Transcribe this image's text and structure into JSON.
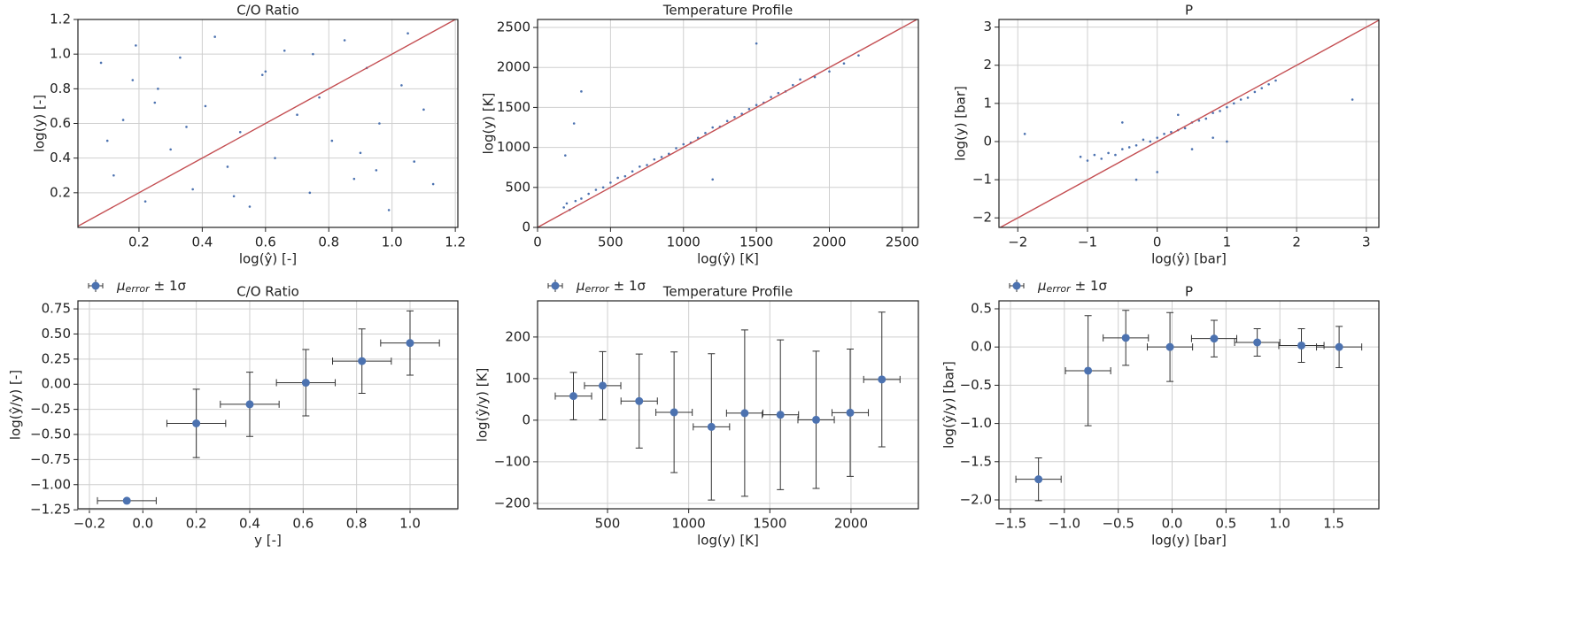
{
  "chart_data": [
    {
      "type": "scatter",
      "title": "C/O Ratio",
      "x_label": "log(ŷ) [-]",
      "y_label": "log(y) [-]",
      "color": "#4c72b0",
      "identity_line_color": "#c44e52",
      "x": [
        0.08,
        0.12,
        0.15,
        0.19,
        0.22,
        0.26,
        0.3,
        0.33,
        0.37,
        0.41,
        0.44,
        0.48,
        0.52,
        0.55,
        0.59,
        0.63,
        0.66,
        0.7,
        0.74,
        0.77,
        0.81,
        0.85,
        0.88,
        0.92,
        0.96,
        0.99,
        1.03,
        1.07,
        1.1,
        1.13,
        0.1,
        0.35,
        0.6,
        0.9,
        1.05,
        0.25,
        0.5,
        0.75,
        0.95,
        0.18
      ],
      "values": [
        0.95,
        0.3,
        0.62,
        1.05,
        0.15,
        0.8,
        0.45,
        0.98,
        0.22,
        0.7,
        1.1,
        0.35,
        0.55,
        0.12,
        0.88,
        0.4,
        1.02,
        0.65,
        0.2,
        0.75,
        0.5,
        1.08,
        0.28,
        0.92,
        0.6,
        0.1,
        0.82,
        0.38,
        0.68,
        0.25,
        0.5,
        0.58,
        0.9,
        0.43,
        1.12,
        0.72,
        0.18,
        1.0,
        0.33,
        0.85
      ],
      "xlim": [
        0.007,
        1.208
      ],
      "ylim": [
        0.0,
        1.2
      ],
      "xticks": [
        0.2,
        0.4,
        0.6,
        0.8,
        {
          "value": 1,
          "label": "1.0"
        },
        1.2
      ],
      "yticks": [
        0.2,
        0.4,
        0.6,
        0.8,
        {
          "value": 1,
          "label": "1.0"
        },
        1.2
      ],
      "grid": true
    },
    {
      "type": "scatter",
      "title": "Temperature Profile",
      "x_label": "log(ŷ) [K]",
      "y_label": "log(y) [K]",
      "color": "#4c72b0",
      "identity_line_color": "#c44e52",
      "x": [
        180,
        200,
        220,
        260,
        300,
        350,
        400,
        450,
        500,
        550,
        600,
        650,
        700,
        750,
        800,
        850,
        900,
        950,
        1000,
        1050,
        1100,
        1150,
        1200,
        1250,
        1300,
        1350,
        1400,
        1450,
        1500,
        1550,
        1600,
        1650,
        1700,
        1750,
        1800,
        1900,
        2000,
        2100,
        2200,
        190,
        300,
        250,
        1200,
        1500
      ],
      "values": [
        250,
        300,
        220,
        330,
        360,
        420,
        470,
        500,
        560,
        620,
        640,
        700,
        760,
        780,
        850,
        880,
        920,
        990,
        1040,
        1060,
        1120,
        1180,
        1250,
        1260,
        1330,
        1380,
        1420,
        1480,
        1530,
        1560,
        1630,
        1680,
        1700,
        1780,
        1850,
        1880,
        1950,
        2050,
        2150,
        900,
        1700,
        1300,
        600,
        2300
      ],
      "xlim": [
        0,
        2610
      ],
      "ylim": [
        0,
        2600
      ],
      "xticks": [
        0,
        500,
        1000,
        1500,
        2000,
        2500
      ],
      "yticks": [
        0,
        500,
        1000,
        1500,
        2000,
        2500
      ],
      "grid": true
    },
    {
      "type": "scatter",
      "title": "P",
      "x_label": "log(ŷ) [bar]",
      "y_label": "log(y) [bar]",
      "color": "#4c72b0",
      "identity_line_color": "#c44e52",
      "x": [
        -1.1,
        -1.0,
        -0.9,
        -0.8,
        -0.7,
        -0.6,
        -0.5,
        -0.4,
        -0.3,
        -0.2,
        -0.1,
        0,
        0.1,
        0.2,
        0.3,
        0.4,
        0.5,
        0.6,
        0.7,
        0.8,
        0.9,
        1.0,
        1.1,
        1.2,
        1.3,
        1.4,
        1.5,
        1.6,
        1.7,
        -0.5,
        0,
        0.5,
        1.0,
        0.8,
        -1.9,
        2.8,
        -0.3,
        0.3
      ],
      "values": [
        -0.4,
        -0.5,
        -0.35,
        -0.45,
        -0.3,
        -0.35,
        -0.2,
        -0.15,
        -0.1,
        0.05,
        0.0,
        0.1,
        0.2,
        0.25,
        0.3,
        0.35,
        0.5,
        0.55,
        0.6,
        0.75,
        0.8,
        0.9,
        1.0,
        1.1,
        1.15,
        1.3,
        1.4,
        1.5,
        1.6,
        0.5,
        -0.8,
        -0.2,
        0.0,
        0.1,
        0.2,
        1.1,
        -1.0,
        0.7
      ],
      "xlim": [
        -2.27,
        3.18
      ],
      "ylim": [
        -2.25,
        3.2
      ],
      "xticks": [
        {
          "value": -2,
          "label": "−2"
        },
        {
          "value": -1,
          "label": "−1"
        },
        0,
        1,
        2,
        3
      ],
      "yticks": [
        {
          "value": -2,
          "label": "−2"
        },
        {
          "value": -1,
          "label": "−1"
        },
        0,
        1,
        2,
        3
      ],
      "grid": true
    },
    {
      "type": "errorbar",
      "title": "C/O Ratio",
      "x_label": "y [-]",
      "y_label": "log(ŷ/y) [-]",
      "color": "#4c72b0",
      "legend": {
        "symbol": "μ",
        "subscript": "error",
        "suffix": "± 1σ"
      },
      "x": [
        -0.06,
        0.2,
        0.4,
        0.61,
        0.82,
        1.0
      ],
      "values": [
        -1.16,
        -0.39,
        -0.2,
        0.015,
        0.23,
        0.41
      ],
      "xerr": [
        0.11,
        0.11,
        0.11,
        0.11,
        0.11,
        0.11
      ],
      "yerr": [
        0.01,
        0.34,
        0.32,
        0.33,
        0.32,
        0.32
      ],
      "xlim": [
        -0.243,
        1.179
      ],
      "ylim": [
        -1.24,
        0.83
      ],
      "xticks": [
        {
          "value": -0.2,
          "label": "−0.2"
        },
        {
          "value": 0,
          "label": "0.0"
        },
        0.2,
        0.4,
        0.6,
        0.8,
        {
          "value": 1,
          "label": "1.0"
        }
      ],
      "yticks": [
        {
          "value": -1.25,
          "label": "−1.25"
        },
        {
          "value": -1,
          "label": "−1.00"
        },
        {
          "value": -0.75,
          "label": "−0.75"
        },
        {
          "value": -0.5,
          "label": "−0.50"
        },
        {
          "value": -0.25,
          "label": "−0.25"
        },
        {
          "value": 0,
          "label": "0.00"
        },
        0.25,
        {
          "value": 0.5,
          "label": "0.50"
        },
        0.75
      ],
      "grid": true
    },
    {
      "type": "errorbar",
      "title": "Temperature Profile",
      "x_label": "log(y) [K]",
      "y_label": "log(ŷ/y) [K]",
      "color": "#4c72b0",
      "legend": {
        "symbol": "μ",
        "subscript": "error",
        "suffix": "± 1σ"
      },
      "x": [
        290,
        470,
        695,
        910,
        1140,
        1345,
        1565,
        1785,
        1995,
        2190
      ],
      "values": [
        58,
        83,
        46,
        19,
        -16,
        17,
        13,
        1,
        18,
        98
      ],
      "xerr": [
        112,
        112,
        112,
        112,
        112,
        112,
        112,
        112,
        112,
        112
      ],
      "yerr": [
        57,
        82,
        113,
        145,
        176,
        200,
        180,
        165,
        153,
        162
      ],
      "xlim": [
        69,
        2415
      ],
      "ylim": [
        -213,
        287
      ],
      "xticks": [
        500,
        1000,
        1500,
        2000
      ],
      "yticks": [
        {
          "value": -200,
          "label": "−200"
        },
        {
          "value": -100,
          "label": "−100"
        },
        0,
        100,
        200
      ],
      "grid": true
    },
    {
      "type": "errorbar",
      "title": "P",
      "x_label": "log(y) [bar]",
      "y_label": "log(ŷ/y) [bar]",
      "color": "#4c72b0",
      "legend": {
        "symbol": "μ",
        "subscript": "error",
        "suffix": "± 1σ"
      },
      "x": [
        -1.24,
        -0.78,
        -0.43,
        -0.02,
        0.39,
        0.79,
        1.2,
        1.55
      ],
      "values": [
        -1.73,
        -0.31,
        0.12,
        0.0,
        0.11,
        0.06,
        0.02,
        0.0
      ],
      "xerr": [
        0.21,
        0.21,
        0.21,
        0.21,
        0.21,
        0.21,
        0.21,
        0.21
      ],
      "yerr": [
        0.28,
        0.72,
        0.36,
        0.45,
        0.24,
        0.18,
        0.22,
        0.27
      ],
      "xlim": [
        -1.607,
        1.919
      ],
      "ylim": [
        -2.116,
        0.604
      ],
      "xticks": [
        {
          "value": -1.5,
          "label": "−1.5"
        },
        {
          "value": -1,
          "label": "−1.0"
        },
        {
          "value": -0.5,
          "label": "−0.5"
        },
        {
          "value": 0,
          "label": "0.0"
        },
        0.5,
        {
          "value": 1,
          "label": "1.0"
        },
        1.5
      ],
      "yticks": [
        {
          "value": -2,
          "label": "−2.0"
        },
        {
          "value": -1.5,
          "label": "−1.5"
        },
        {
          "value": -1,
          "label": "−1.0"
        },
        {
          "value": -0.5,
          "label": "−0.5"
        },
        {
          "value": 0,
          "label": "0.0"
        },
        0.5
      ],
      "grid": true
    }
  ]
}
